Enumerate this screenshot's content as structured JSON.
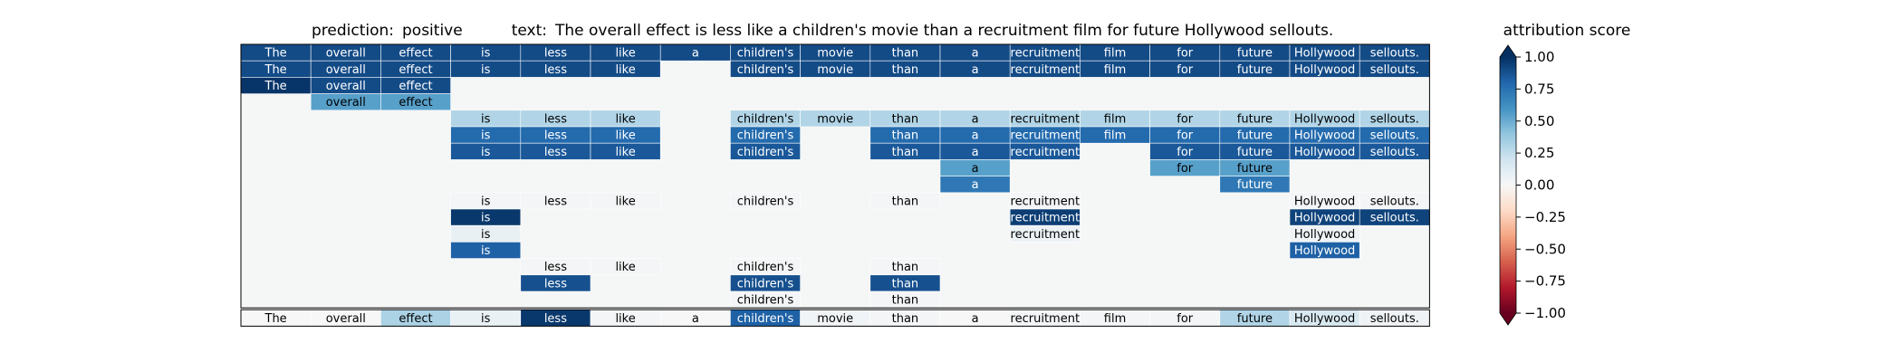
{
  "header": {
    "prediction_label": "prediction:",
    "prediction_value": "positive",
    "text_label": "text:",
    "text_value": "The overall effect is less like a children's movie than a recruitment film for future Hollywood sellouts."
  },
  "colorbar": {
    "title": "attribution score",
    "ticks": [
      "1.00",
      "0.75",
      "0.50",
      "0.25",
      "0.00",
      "−0.25",
      "−0.50",
      "−0.75",
      "−1.00"
    ],
    "colormap": "RdBu",
    "min_color": "#67001f",
    "mid_color": "#f7f7f7",
    "max_color": "#053061",
    "extend": "both"
  },
  "chart_data": {
    "type": "heatmap",
    "title": "prediction:  positive     text:  The overall effect is less like a children's movie than a recruitment film for future Hollywood sellouts.",
    "x_tokens": [
      "The",
      "overall",
      "effect",
      "is",
      "less",
      "like",
      "a",
      "children's",
      "movie",
      "than",
      "a",
      "recruitment",
      "film",
      "for",
      "future",
      "Hollywood",
      "sellouts."
    ],
    "value_range": [
      -1,
      1
    ],
    "background_color": "#f5f6f6",
    "rows": [
      {
        "cells": [
          [
            0,
            0.9
          ],
          [
            1,
            0.9
          ],
          [
            2,
            0.9
          ],
          [
            3,
            0.9
          ],
          [
            4,
            0.9
          ],
          [
            5,
            0.9
          ],
          [
            6,
            0.9
          ],
          [
            7,
            0.9
          ],
          [
            8,
            0.9
          ],
          [
            9,
            0.9
          ],
          [
            10,
            0.9
          ],
          [
            11,
            0.9
          ],
          [
            12,
            0.9
          ],
          [
            13,
            0.9
          ],
          [
            14,
            0.9
          ],
          [
            15,
            0.9
          ],
          [
            16,
            0.9
          ]
        ]
      },
      {
        "cells": [
          [
            0,
            0.9
          ],
          [
            1,
            0.9
          ],
          [
            2,
            0.9
          ],
          [
            3,
            0.9
          ],
          [
            4,
            0.9
          ],
          [
            5,
            0.9
          ],
          [
            7,
            0.9
          ],
          [
            8,
            0.9
          ],
          [
            9,
            0.9
          ],
          [
            10,
            0.9
          ],
          [
            11,
            0.9
          ],
          [
            12,
            0.9
          ],
          [
            13,
            0.9
          ],
          [
            14,
            0.9
          ],
          [
            15,
            0.9
          ],
          [
            16,
            0.9
          ]
        ]
      },
      {
        "cells": [
          [
            0,
            0.98
          ],
          [
            1,
            0.9
          ],
          [
            2,
            0.9
          ]
        ]
      },
      {
        "cells": [
          [
            1,
            0.55
          ],
          [
            2,
            0.55
          ]
        ]
      },
      {
        "cells": [
          [
            3,
            0.3
          ],
          [
            4,
            0.3
          ],
          [
            5,
            0.3
          ],
          [
            7,
            0.3
          ],
          [
            8,
            0.3
          ],
          [
            9,
            0.3
          ],
          [
            10,
            0.3
          ],
          [
            11,
            0.3
          ],
          [
            12,
            0.3
          ],
          [
            13,
            0.3
          ],
          [
            14,
            0.3
          ],
          [
            15,
            0.3
          ],
          [
            16,
            0.3
          ]
        ]
      },
      {
        "cells": [
          [
            3,
            0.78
          ],
          [
            4,
            0.78
          ],
          [
            5,
            0.78
          ],
          [
            7,
            0.78
          ],
          [
            9,
            0.78
          ],
          [
            10,
            0.78
          ],
          [
            11,
            0.78
          ],
          [
            12,
            0.78
          ],
          [
            13,
            0.78
          ],
          [
            14,
            0.78
          ],
          [
            15,
            0.78
          ],
          [
            16,
            0.78
          ]
        ]
      },
      {
        "cells": [
          [
            3,
            0.85
          ],
          [
            4,
            0.85
          ],
          [
            5,
            0.85
          ],
          [
            7,
            0.85
          ],
          [
            9,
            0.85
          ],
          [
            10,
            0.85
          ],
          [
            11,
            0.85
          ],
          [
            13,
            0.85
          ],
          [
            14,
            0.85
          ],
          [
            15,
            0.85
          ],
          [
            16,
            0.85
          ]
        ]
      },
      {
        "cells": [
          [
            10,
            0.55
          ],
          [
            13,
            0.55
          ],
          [
            14,
            0.55
          ]
        ]
      },
      {
        "cells": [
          [
            10,
            0.72
          ],
          [
            14,
            0.72
          ]
        ]
      },
      {
        "cells": [
          [
            3,
            0.02
          ],
          [
            4,
            0.02
          ],
          [
            5,
            0.02
          ],
          [
            7,
            0.02
          ],
          [
            9,
            0.02
          ],
          [
            11,
            0.02
          ],
          [
            15,
            0.02
          ],
          [
            16,
            0.02
          ]
        ]
      },
      {
        "cells": [
          [
            3,
            0.97
          ],
          [
            11,
            0.95
          ],
          [
            15,
            0.93
          ],
          [
            16,
            0.93
          ]
        ]
      },
      {
        "cells": [
          [
            3,
            0.08
          ],
          [
            11,
            0.06
          ],
          [
            15,
            0.04
          ]
        ]
      },
      {
        "cells": [
          [
            3,
            0.82
          ],
          [
            15,
            0.82
          ]
        ]
      },
      {
        "cells": [
          [
            4,
            0.02
          ],
          [
            5,
            0.02
          ],
          [
            7,
            0.02
          ],
          [
            9,
            0.02
          ]
        ]
      },
      {
        "cells": [
          [
            4,
            0.88
          ],
          [
            7,
            0.88
          ],
          [
            9,
            0.88
          ]
        ]
      },
      {
        "cells": [
          [
            7,
            0.02
          ],
          [
            9,
            0.02
          ]
        ]
      }
    ],
    "summary_row": [
      0.0,
      0.0,
      0.32,
      0.07,
      0.97,
      0.02,
      0.0,
      0.82,
      0.03,
      0.02,
      0.0,
      0.02,
      0.02,
      0.02,
      0.3,
      0.16,
      0.04
    ]
  }
}
